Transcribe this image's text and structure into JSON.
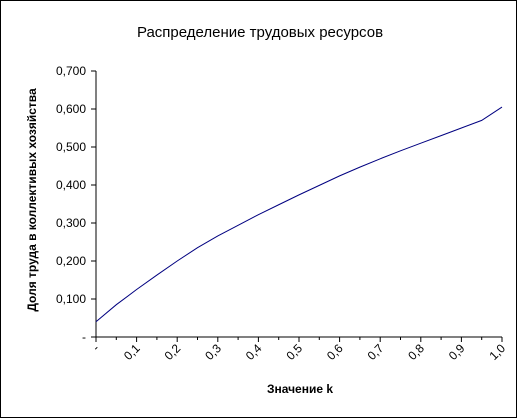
{
  "chart_data": {
    "type": "line",
    "title": "Распределение трудовых ресурсов",
    "xlabel": "Значение k",
    "ylabel": "Доля труда в коллективых хозяйства",
    "xlim": [
      0,
      1.0
    ],
    "ylim": [
      0,
      0.7
    ],
    "x_tick_values": [
      0,
      0.1,
      0.2,
      0.3,
      0.4,
      0.5,
      0.6,
      0.7,
      0.8,
      0.9,
      1.0
    ],
    "x_tick_labels": [
      "-",
      "0,1",
      "0,2",
      "0,3",
      "0,4",
      "0,5",
      "0,6",
      "0,7",
      "0,8",
      "0,9",
      "1,0"
    ],
    "y_tick_values": [
      0,
      0.1,
      0.2,
      0.3,
      0.4,
      0.5,
      0.6,
      0.7
    ],
    "y_tick_labels": [
      "-",
      "0,100",
      "0,200",
      "0,300",
      "0,400",
      "0,500",
      "0,600",
      "0,700"
    ],
    "grid": false,
    "legend": "none",
    "series": [
      {
        "color": "#000080",
        "x": [
          0,
          0.05,
          0.1,
          0.15,
          0.2,
          0.25,
          0.3,
          0.35,
          0.4,
          0.45,
          0.5,
          0.55,
          0.6,
          0.65,
          0.7,
          0.75,
          0.8,
          0.85,
          0.9,
          0.95,
          1.0
        ],
        "values": [
          0.04,
          0.085,
          0.125,
          0.163,
          0.2,
          0.235,
          0.266,
          0.294,
          0.322,
          0.348,
          0.374,
          0.399,
          0.424,
          0.447,
          0.469,
          0.49,
          0.51,
          0.53,
          0.55,
          0.57,
          0.605
        ]
      }
    ]
  }
}
